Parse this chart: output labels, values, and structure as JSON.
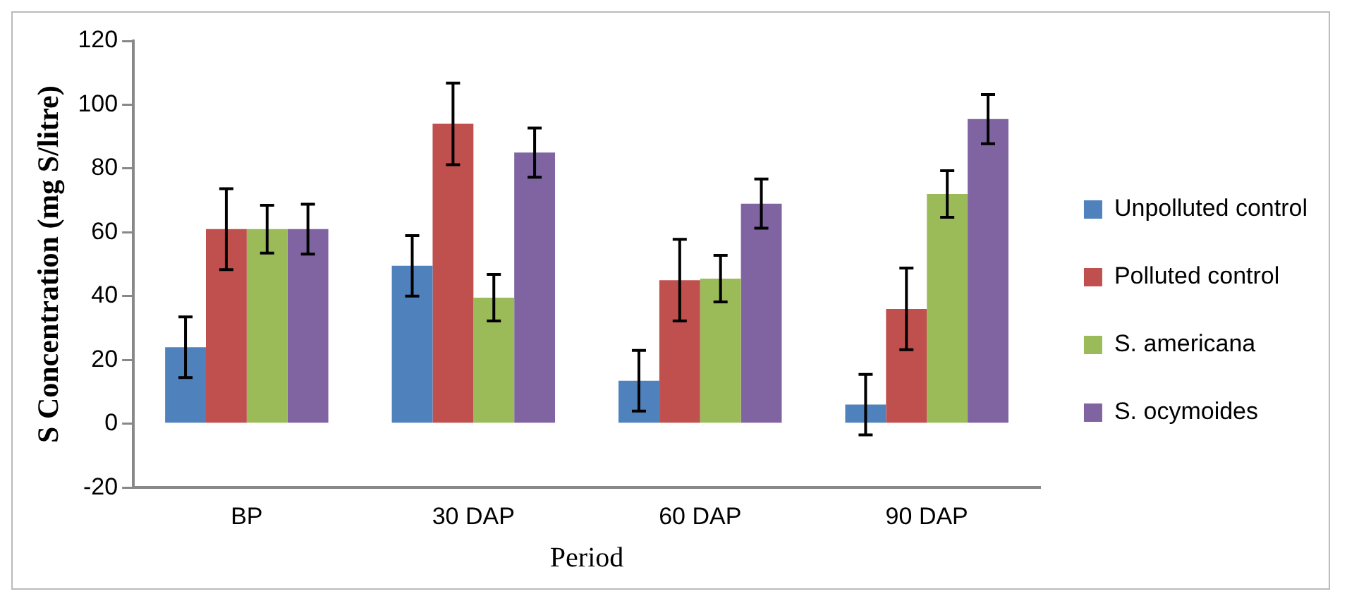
{
  "chart_data": {
    "type": "bar",
    "xlabel": "Period",
    "ylabel": "S Concentration (mg S/litre)",
    "categories": [
      "BP",
      "30 DAP",
      "60 DAP",
      "90 DAP"
    ],
    "series": [
      {
        "name": "Unpolluted control",
        "color": "#4f81bd",
        "values": [
          24,
          49.5,
          13.5,
          6
        ],
        "errors": [
          9.5,
          9.5,
          9.5,
          9.5
        ]
      },
      {
        "name": "Polluted control",
        "color": "#c0504d",
        "values": [
          61,
          94,
          45,
          36
        ],
        "errors": [
          12.7,
          12.8,
          12.8,
          12.8
        ]
      },
      {
        "name": "S. americana",
        "color": "#9bbb59",
        "values": [
          61,
          39.5,
          45.5,
          72
        ],
        "errors": [
          7.5,
          7.3,
          7.3,
          7.3
        ]
      },
      {
        "name": "S. ocymoides",
        "color": "#8064a2",
        "values": [
          61,
          85,
          69,
          95.5
        ],
        "errors": [
          7.8,
          7.7,
          7.7,
          7.7
        ]
      }
    ],
    "ylim": [
      -20,
      120
    ],
    "yticks": [
      -20,
      0,
      20,
      40,
      60,
      80,
      100,
      120
    ],
    "grid": false,
    "legend": "right"
  }
}
